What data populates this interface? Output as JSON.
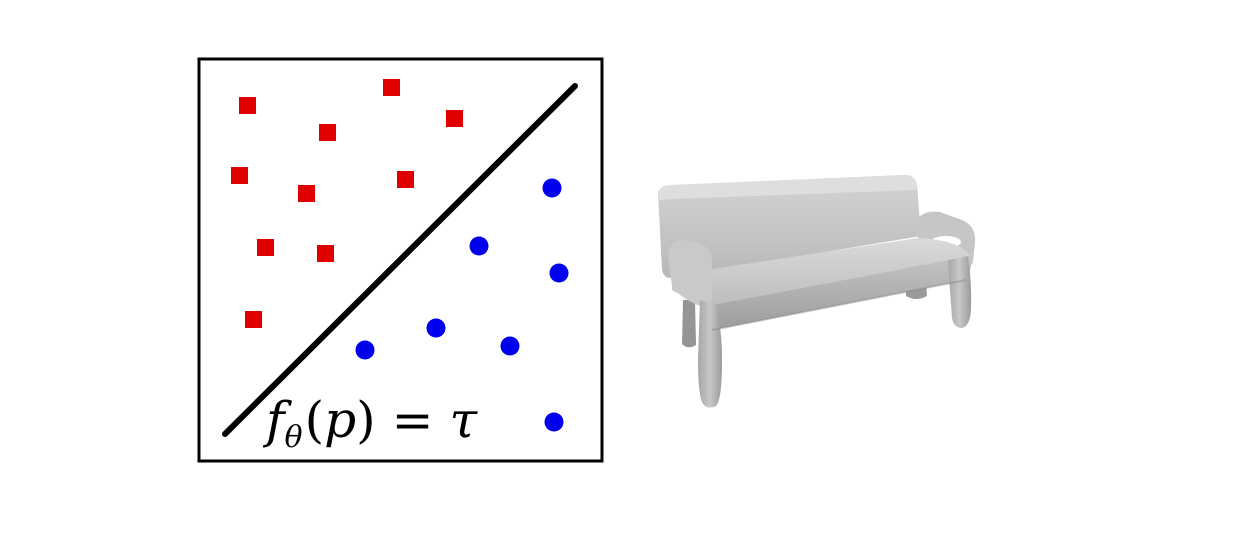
{
  "diagram": {
    "equation": {
      "f": "f",
      "subscript": "θ",
      "open": "(",
      "argument": "p",
      "close": ")",
      "equals": "=",
      "rhs": "τ"
    },
    "colors": {
      "frame": "#000000",
      "boundary": "#000000",
      "outside_points": "#e00000",
      "inside_points": "#0000ee",
      "bench_light": "#d9d9d9",
      "bench_mid": "#b3b3b3",
      "bench_dark": "#8c8c8c"
    },
    "icons": {
      "outside_marker": "red-square-icon",
      "inside_marker": "blue-circle-icon",
      "shape": "bench-3d-render"
    }
  }
}
